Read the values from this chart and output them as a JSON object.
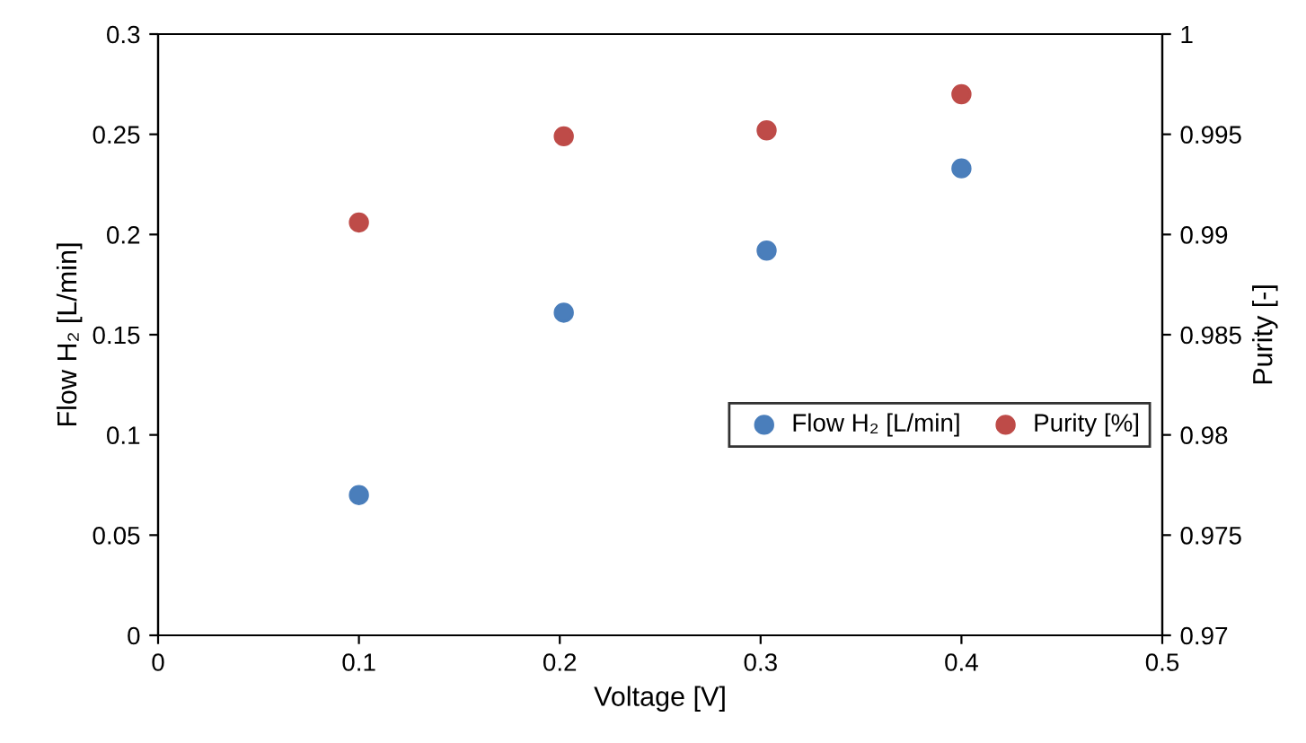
{
  "chart_data": {
    "type": "scatter",
    "xlabel": "Voltage [V]",
    "ylabel": "Flow H₂ [L/min]",
    "y2label": "Purity [-]",
    "x": [
      0.1,
      0.202,
      0.303,
      0.4
    ],
    "series": [
      {
        "name": "Flow H₂ [L/min]",
        "color": "#4a7ebb",
        "values": [
          0.07,
          0.161,
          0.192,
          0.233
        ]
      },
      {
        "name": "Purity [%]",
        "color": "#be4b48",
        "axis": "y2",
        "values": [
          0.9906,
          0.9949,
          0.9952,
          0.997
        ]
      }
    ],
    "xlim": [
      0,
      0.5
    ],
    "xticks": [
      0,
      0.1,
      0.2,
      0.3,
      0.4,
      0.5
    ],
    "ylim": [
      0,
      0.3
    ],
    "yticks": [
      0,
      0.05,
      0.1,
      0.15,
      0.2,
      0.25,
      0.3
    ],
    "y2lim": [
      0.97,
      1
    ],
    "y2ticks": [
      0.97,
      0.975,
      0.98,
      0.985,
      0.99,
      0.995,
      1
    ],
    "marker": "circle",
    "grid": false,
    "legend": "center right"
  }
}
